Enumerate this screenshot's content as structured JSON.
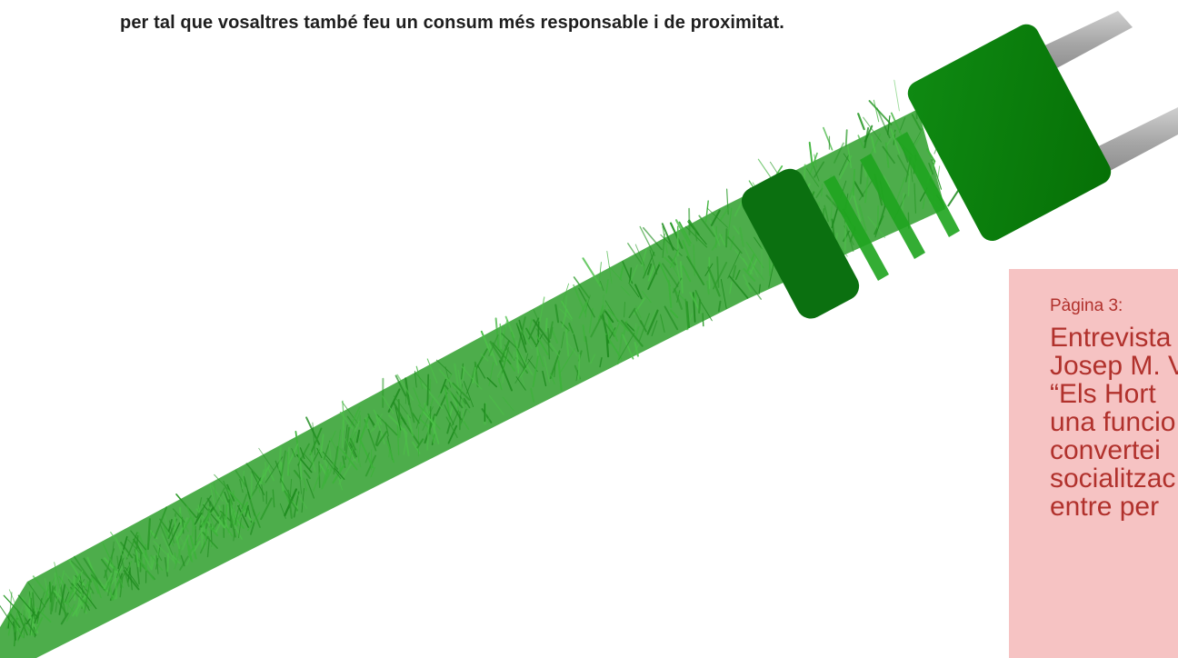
{
  "intro": {
    "text": "per tal que vosaltres també feu un consum més responsable i de proximitat."
  },
  "illustration": {
    "subject": "grass-covered-electric-plug",
    "colors": {
      "grass_light": "#3db33a",
      "grass_dark": "#1e8c1e",
      "plug_body": "#0c7a0c",
      "plug_ring": "#0b7010",
      "plug_stripe": "#1fa51f",
      "prong": "#a6a6a6"
    }
  },
  "callout": {
    "background": "#f6c3c3",
    "text_color": "#b1312c",
    "page_label": "Pàgina 3:",
    "title_lines": [
      "Entrevista",
      "Josep M. V",
      "“Els Hort",
      "una funcio",
      "convertei",
      "socialitzac",
      "entre per"
    ]
  }
}
